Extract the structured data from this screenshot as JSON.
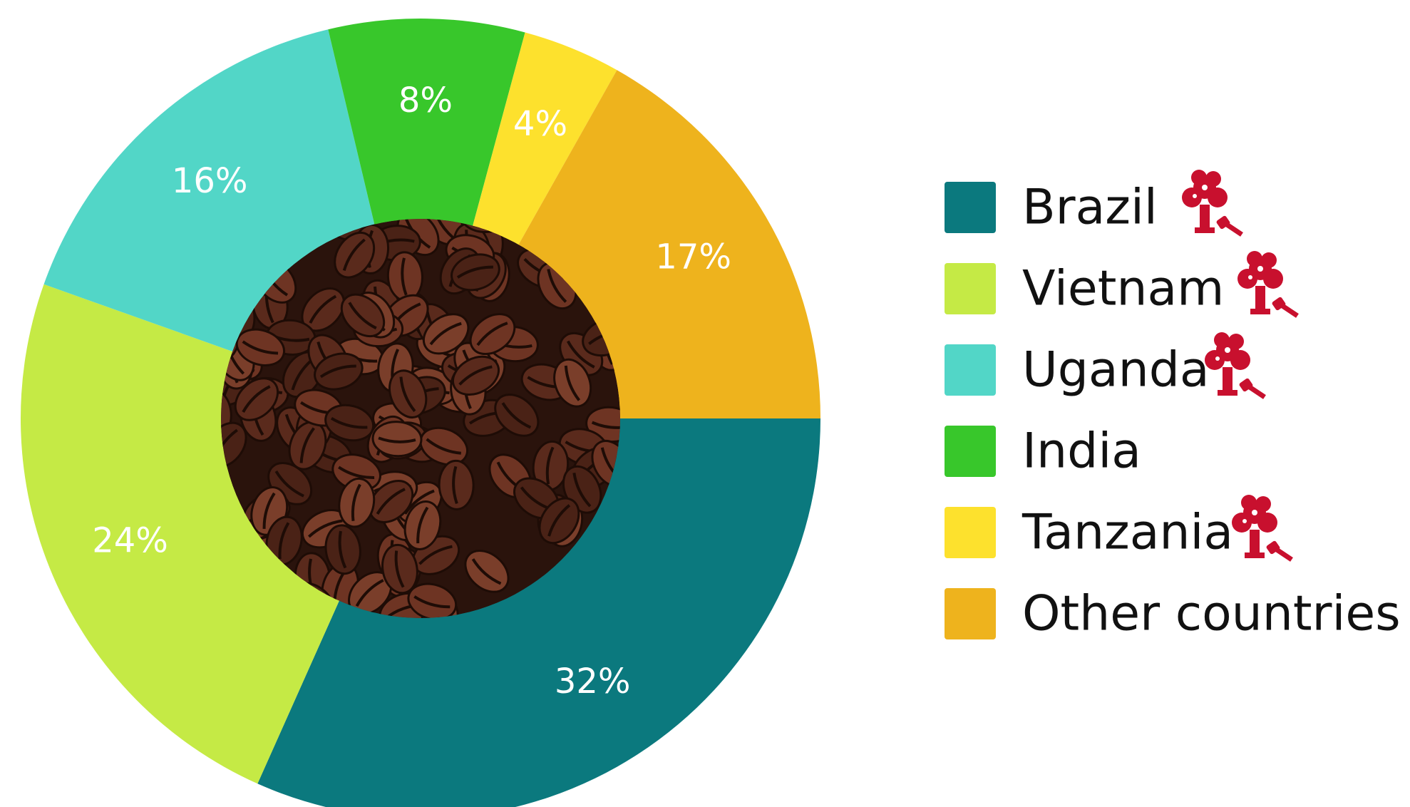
{
  "chart_data": {
    "type": "pie",
    "categories": [
      "Brazil",
      "Vietnam",
      "Uganda",
      "India",
      "Tanzania",
      "Other countries"
    ],
    "values": [
      32,
      24,
      16,
      8,
      4,
      17
    ],
    "value_labels": [
      "32%",
      "24%",
      "16%",
      "8%",
      "4%",
      "17%"
    ],
    "colors": [
      "#0b797e",
      "#c5ea45",
      "#52d6c7",
      "#38c72b",
      "#fde12d",
      "#eeb31d"
    ],
    "legend": "right"
  }
}
